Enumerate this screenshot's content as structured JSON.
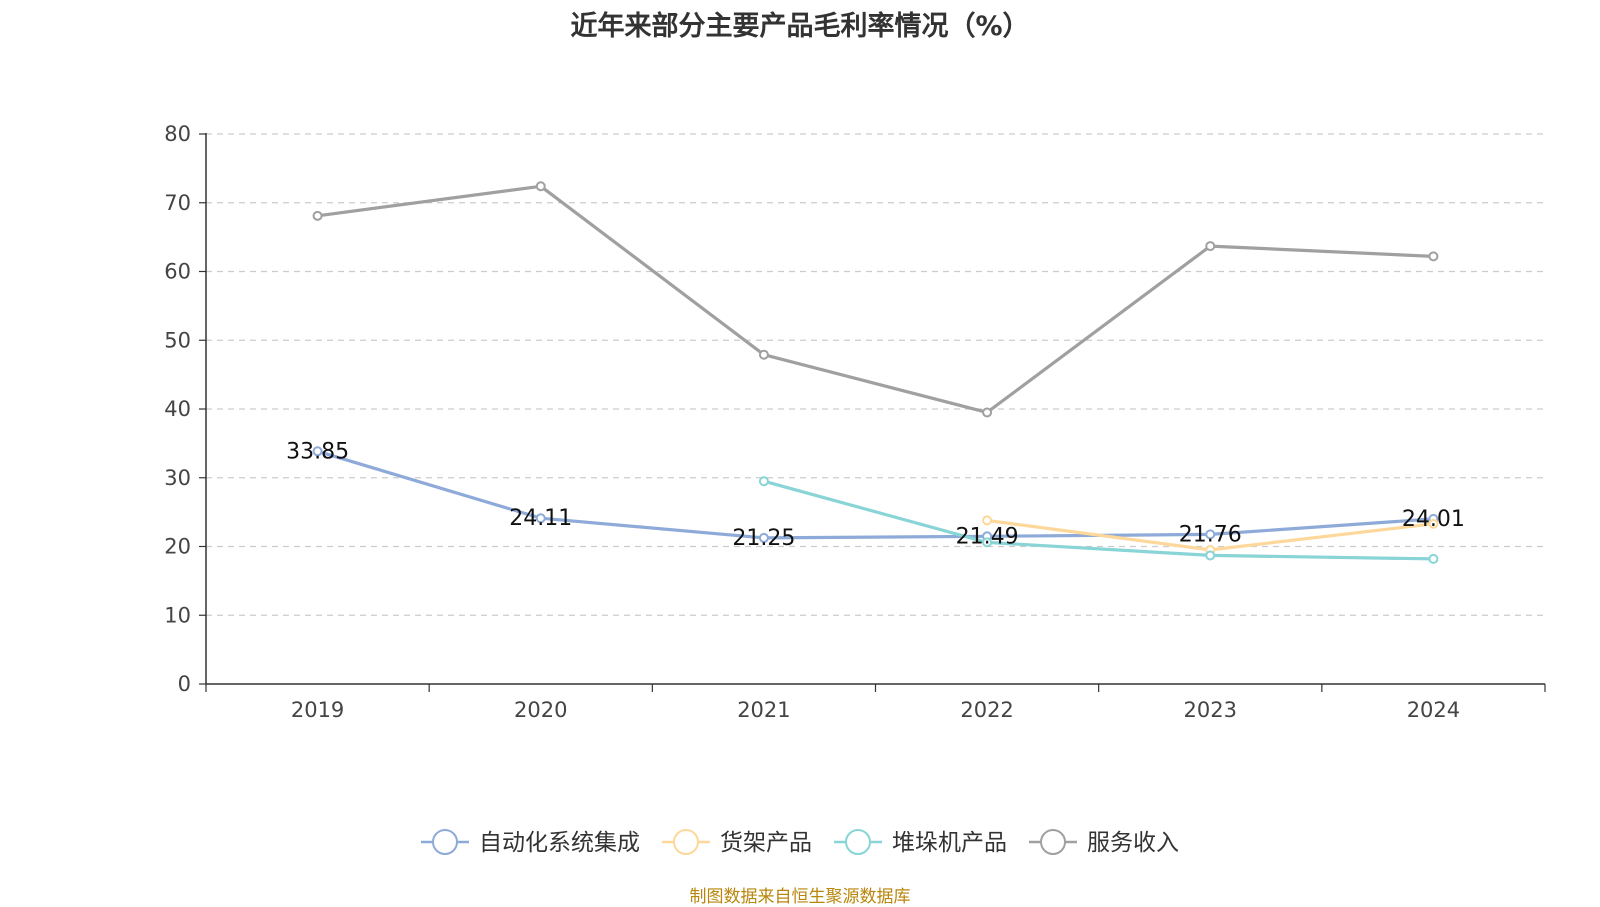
{
  "chart_data": {
    "type": "line",
    "title": "近年来部分主要产品毛利率情况（%）",
    "categories": [
      "2019",
      "2020",
      "2021",
      "2022",
      "2023",
      "2024"
    ],
    "ylim": [
      0,
      80
    ],
    "yticks": [
      0,
      10,
      20,
      30,
      40,
      50,
      60,
      70,
      80
    ],
    "grid": true,
    "legend_position": "bottom",
    "series": [
      {
        "name": "自动化系统集成",
        "color": "#8eaad8",
        "values": [
          33.85,
          24.11,
          21.25,
          21.49,
          21.76,
          24.01
        ],
        "labels": [
          "33.85",
          "24.11",
          "21.25",
          "21.49",
          "21.76",
          "24.01"
        ]
      },
      {
        "name": "货架产品",
        "color": "#fdd89a",
        "values": [
          null,
          null,
          null,
          23.8,
          19.5,
          23.3
        ]
      },
      {
        "name": "堆垛机产品",
        "color": "#88d4d6",
        "values": [
          null,
          null,
          29.5,
          20.6,
          18.7,
          18.2
        ]
      },
      {
        "name": "服务收入",
        "color": "#a0a0a0",
        "values": [
          68.1,
          72.4,
          47.9,
          39.5,
          63.7,
          62.2
        ]
      }
    ]
  },
  "source": "制图数据来自恒生聚源数据库"
}
